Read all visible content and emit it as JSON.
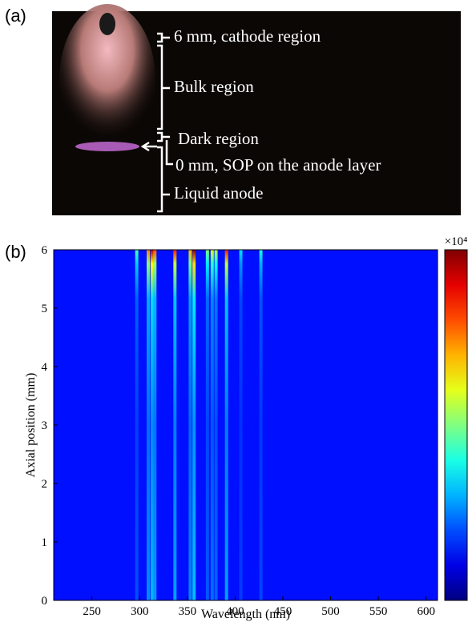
{
  "panel_a": {
    "label": "(a)",
    "annotations": [
      "6 mm, cathode region",
      "Bulk region",
      "Dark region",
      "0 mm, SOP on the anode layer",
      "Liquid anode"
    ]
  },
  "chart_data": {
    "type": "heatmap",
    "label": "(b)",
    "xlabel": "Wavelength (nm)",
    "ylabel": "Axial position (mm)",
    "xlim": [
      210,
      612
    ],
    "ylim": [
      0,
      6
    ],
    "xticks": [
      250,
      300,
      350,
      400,
      450,
      500,
      550,
      600
    ],
    "yticks": [
      0,
      1,
      2,
      3,
      4,
      5,
      6
    ],
    "colorbar_label": "×10⁴",
    "clim": [
      0,
      1
    ],
    "x": [
      297,
      309,
      313,
      316,
      337,
      353,
      357,
      371,
      376,
      380,
      391,
      406,
      427
    ],
    "values": [
      0.45,
      0.75,
      0.95,
      0.8,
      0.85,
      0.7,
      1.0,
      0.5,
      0.6,
      0.55,
      0.85,
      0.35,
      0.4
    ]
  }
}
